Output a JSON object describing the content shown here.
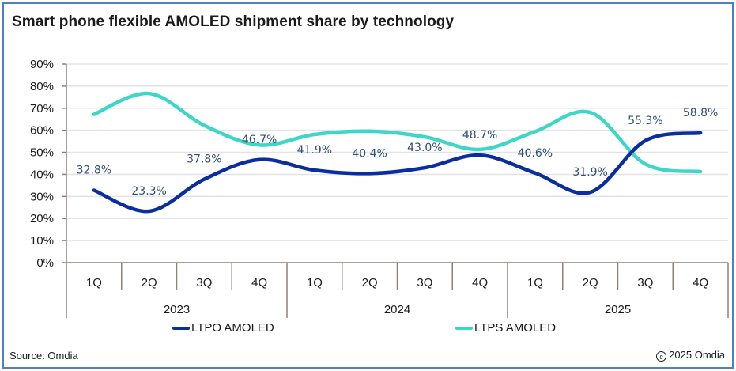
{
  "source": "Source: Omdia",
  "copyright": "2025 Omdia",
  "copyright_icon": "copyright-icon",
  "chart_data": {
    "type": "line",
    "title": "Smart phone flexible AMOLED shipment share by technology",
    "xlabel": "",
    "ylabel": "",
    "ylim": [
      0,
      0.9
    ],
    "yticks": [
      "0%",
      "10%",
      "20%",
      "30%",
      "40%",
      "50%",
      "60%",
      "70%",
      "80%",
      "90%"
    ],
    "grid": true,
    "smooth": true,
    "legend_position": "bottom",
    "categories": [
      "1Q",
      "2Q",
      "3Q",
      "4Q",
      "1Q",
      "2Q",
      "3Q",
      "4Q",
      "1Q",
      "2Q",
      "3Q",
      "4Q"
    ],
    "groups": [
      {
        "label": "2023",
        "span": 4
      },
      {
        "label": "2024",
        "span": 4
      },
      {
        "label": "2025",
        "span": 4
      }
    ],
    "series": [
      {
        "name": "LTPO AMOLED",
        "color": "#0a2ea0",
        "values": [
          0.328,
          0.233,
          0.378,
          0.467,
          0.419,
          0.404,
          0.43,
          0.487,
          0.406,
          0.319,
          0.553,
          0.588
        ],
        "labels": [
          "32.8%",
          "23.3%",
          "37.8%",
          "46.7%",
          "41.9%",
          "40.4%",
          "43.0%",
          "48.7%",
          "40.6%",
          "31.9%",
          "55.3%",
          "58.8%"
        ]
      },
      {
        "name": "LTPS AMOLED",
        "color": "#3ed6c8",
        "values": [
          0.672,
          0.767,
          0.622,
          0.533,
          0.581,
          0.596,
          0.57,
          0.513,
          0.594,
          0.681,
          0.447,
          0.412
        ],
        "labels": []
      }
    ],
    "colors": {
      "axis": "#8c8279",
      "grid": "#e3e3e3",
      "label_text": "#2f4f74",
      "tick_text": "#1a1a1a"
    }
  }
}
